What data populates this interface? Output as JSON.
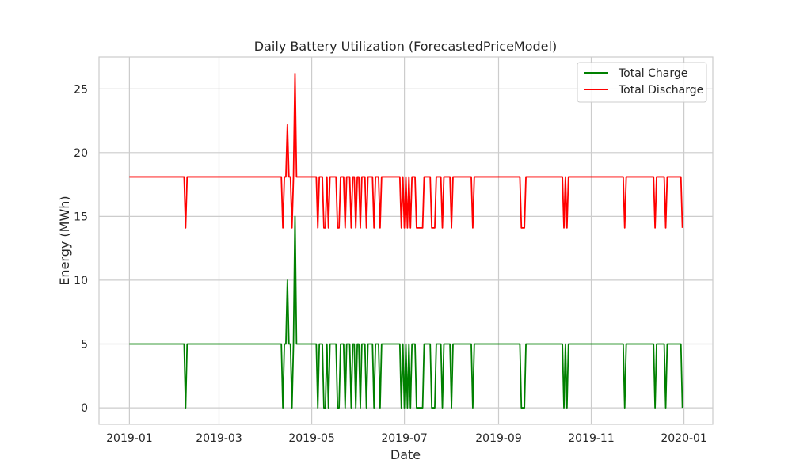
{
  "chart_data": {
    "type": "line",
    "title": "Daily Battery Utilization (ForecastedPriceModel)",
    "xlabel": "Date",
    "ylabel": "Energy (MWh)",
    "xlim": [
      "2018-12-12",
      "2020-01-20"
    ],
    "ylim": [
      -1.3,
      27.5
    ],
    "grid": true,
    "legend_location": "top-right",
    "x_ticks": [
      "2019-01",
      "2019-03",
      "2019-05",
      "2019-07",
      "2019-09",
      "2019-11",
      "2020-01"
    ],
    "y_ticks": [
      0,
      5,
      10,
      15,
      20,
      25
    ],
    "series": [
      {
        "name": "Total Charge",
        "color": "#008000",
        "baseline": 5,
        "start": "2019-01-01",
        "end": "2019-12-31",
        "changes": [
          [
            "2019-02-07",
            0
          ],
          [
            "2019-04-12",
            0
          ],
          [
            "2019-04-15",
            10
          ],
          [
            "2019-04-18",
            0
          ],
          [
            "2019-04-20",
            15
          ],
          [
            "2019-05-05",
            0
          ],
          [
            "2019-05-09",
            0
          ],
          [
            "2019-05-10",
            0
          ],
          [
            "2019-05-12",
            0
          ],
          [
            "2019-05-18",
            0
          ],
          [
            "2019-05-19",
            0
          ],
          [
            "2019-05-23",
            0
          ],
          [
            "2019-05-27",
            0
          ],
          [
            "2019-05-30",
            0
          ],
          [
            "2019-06-02",
            0
          ],
          [
            "2019-06-06",
            0
          ],
          [
            "2019-06-11",
            0
          ],
          [
            "2019-06-15",
            0
          ],
          [
            "2019-06-29",
            0
          ],
          [
            "2019-07-01",
            0
          ],
          [
            "2019-07-03",
            0
          ],
          [
            "2019-07-05",
            0
          ],
          [
            "2019-07-09",
            0
          ],
          [
            "2019-07-10",
            0
          ],
          [
            "2019-07-11",
            0
          ],
          [
            "2019-07-12",
            0
          ],
          [
            "2019-07-13",
            0
          ],
          [
            "2019-07-19",
            0
          ],
          [
            "2019-07-20",
            0
          ],
          [
            "2019-07-21",
            0
          ],
          [
            "2019-07-26",
            0
          ],
          [
            "2019-08-01",
            0
          ],
          [
            "2019-08-15",
            0
          ],
          [
            "2019-09-16",
            0
          ],
          [
            "2019-09-17",
            0
          ],
          [
            "2019-09-18",
            0
          ],
          [
            "2019-10-14",
            0
          ],
          [
            "2019-10-16",
            0
          ],
          [
            "2019-11-23",
            0
          ],
          [
            "2019-12-13",
            0
          ],
          [
            "2019-12-20",
            0
          ],
          [
            "2019-12-31",
            0
          ]
        ]
      },
      {
        "name": "Total Discharge",
        "color": "#ff0000",
        "baseline": 18.1,
        "start": "2019-01-01",
        "end": "2019-12-31",
        "changes": [
          [
            "2019-02-07",
            14.1
          ],
          [
            "2019-04-12",
            14.1
          ],
          [
            "2019-04-15",
            22.2
          ],
          [
            "2019-04-18",
            14.1
          ],
          [
            "2019-04-20",
            26.2
          ],
          [
            "2019-05-05",
            14.1
          ],
          [
            "2019-05-09",
            14.1
          ],
          [
            "2019-05-10",
            14.1
          ],
          [
            "2019-05-12",
            14.1
          ],
          [
            "2019-05-18",
            14.1
          ],
          [
            "2019-05-19",
            14.1
          ],
          [
            "2019-05-23",
            14.1
          ],
          [
            "2019-05-27",
            14.1
          ],
          [
            "2019-05-30",
            14.1
          ],
          [
            "2019-06-02",
            14.1
          ],
          [
            "2019-06-06",
            14.1
          ],
          [
            "2019-06-11",
            14.1
          ],
          [
            "2019-06-15",
            14.1
          ],
          [
            "2019-06-29",
            14.1
          ],
          [
            "2019-07-01",
            14.1
          ],
          [
            "2019-07-03",
            14.1
          ],
          [
            "2019-07-05",
            14.1
          ],
          [
            "2019-07-09",
            14.1
          ],
          [
            "2019-07-10",
            14.1
          ],
          [
            "2019-07-11",
            14.1
          ],
          [
            "2019-07-12",
            14.1
          ],
          [
            "2019-07-13",
            14.1
          ],
          [
            "2019-07-19",
            14.1
          ],
          [
            "2019-07-20",
            14.1
          ],
          [
            "2019-07-21",
            14.1
          ],
          [
            "2019-07-26",
            14.1
          ],
          [
            "2019-08-01",
            14.1
          ],
          [
            "2019-08-15",
            14.1
          ],
          [
            "2019-09-16",
            14.1
          ],
          [
            "2019-09-17",
            14.1
          ],
          [
            "2019-09-18",
            14.1
          ],
          [
            "2019-10-14",
            14.1
          ],
          [
            "2019-10-16",
            14.1
          ],
          [
            "2019-11-23",
            14.1
          ],
          [
            "2019-12-13",
            14.1
          ],
          [
            "2019-12-20",
            14.1
          ],
          [
            "2019-12-31",
            14.1
          ]
        ]
      }
    ]
  }
}
